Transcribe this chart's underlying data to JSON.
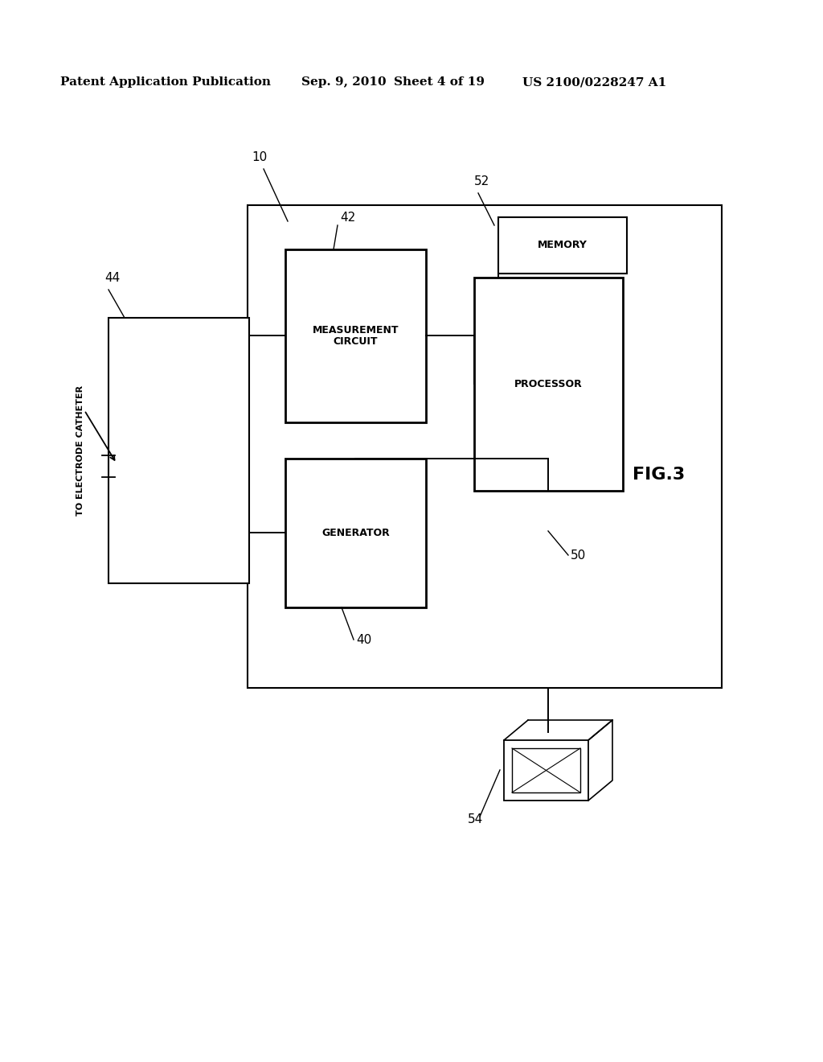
{
  "background_color": "#ffffff",
  "header_text": "Patent Application Publication",
  "header_date": "Sep. 9, 2010",
  "header_sheet": "Sheet 4 of 19",
  "header_patent": "US 2100/0228247 A1",
  "fig_label": "FIG.3",
  "catheter_label": "TO ELECTRODE CATHETER",
  "labels": {
    "10": "10",
    "40": "40",
    "42": "42",
    "44": "44",
    "50": "50",
    "52": "52",
    "54": "54"
  }
}
